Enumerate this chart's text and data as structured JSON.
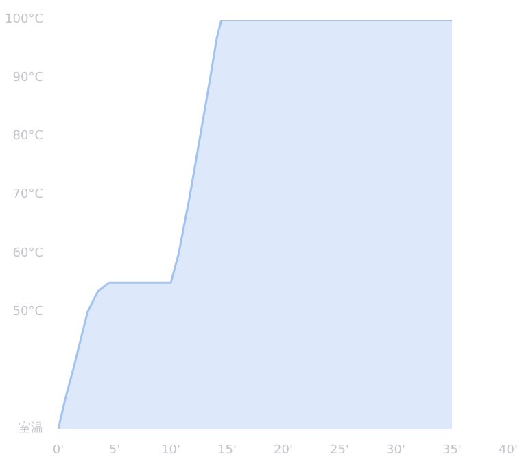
{
  "chart_data": {
    "type": "area",
    "x": [
      0,
      0.6,
      1.3,
      2.6,
      3.5,
      4.5,
      10,
      10.7,
      11.7,
      12.6,
      13.5,
      14.1,
      14.5,
      35
    ],
    "series": [
      {
        "color": "#8fb6ee",
        "values": [
          30,
          35,
          40,
          50,
          53.5,
          55,
          55,
          60,
          70,
          80,
          90,
          97,
          100,
          100
        ]
      }
    ],
    "xlim": [
      0,
      40
    ],
    "ylim": [
      30,
      100
    ],
    "xticks": [
      {
        "value": 0,
        "label": "0'"
      },
      {
        "value": 5,
        "label": "5'"
      },
      {
        "value": 10,
        "label": "10'"
      },
      {
        "value": 15,
        "label": "15'"
      },
      {
        "value": 20,
        "label": "20'"
      },
      {
        "value": 25,
        "label": "25'"
      },
      {
        "value": 30,
        "label": "30'"
      },
      {
        "value": 35,
        "label": "35'"
      },
      {
        "value": 40,
        "label": "40'"
      }
    ],
    "yticks": [
      {
        "value": 30,
        "label": "室温"
      },
      {
        "value": 50,
        "label": "50°C"
      },
      {
        "value": 60,
        "label": "60°C"
      },
      {
        "value": 70,
        "label": "70°C"
      },
      {
        "value": 80,
        "label": "80°C"
      },
      {
        "value": 90,
        "label": "90°C"
      },
      {
        "value": 100,
        "label": "100°C"
      }
    ],
    "grid": false
  }
}
